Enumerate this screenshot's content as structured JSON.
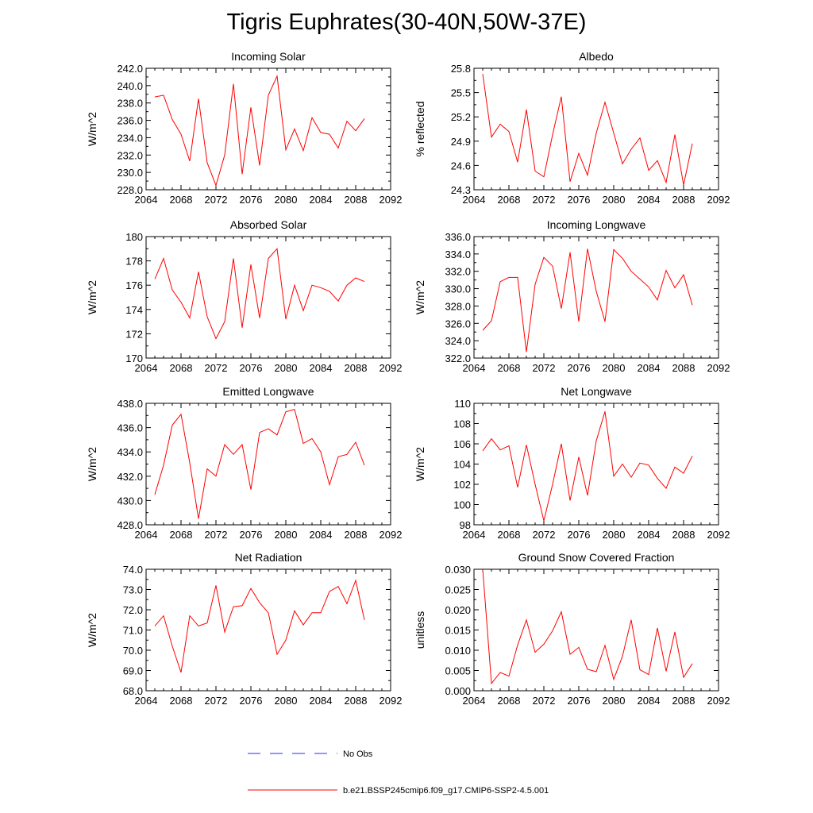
{
  "title": "Tigris Euphrates(30-40N,50W-37E)",
  "legend": {
    "entries": [
      {
        "label": "No Obs",
        "color": "#0000ff",
        "dashed": true
      },
      {
        "label": "b.e21.BSSP245cmip6.f09_g17.CMIP6-SSP2-4.5.001",
        "color": "#ff0000",
        "dashed": false
      }
    ]
  },
  "chart_data": [
    {
      "type": "line",
      "title": "Incoming Solar",
      "xlabel": "",
      "ylabel": "W/m^2",
      "xlim": [
        2064,
        2092
      ],
      "ylim": [
        228,
        242
      ],
      "yformat": 1,
      "xticks": [
        2064,
        2068,
        2072,
        2076,
        2080,
        2084,
        2088,
        2092
      ],
      "yticks": [
        228,
        230,
        232,
        234,
        236,
        238,
        240,
        242
      ],
      "series": [
        {
          "color": "#ff0000",
          "x": [
            2065,
            2066,
            2067,
            2068,
            2069,
            2070,
            2071,
            2072,
            2073,
            2074,
            2075,
            2076,
            2077,
            2078,
            2079,
            2080,
            2081,
            2082,
            2083,
            2084,
            2085,
            2086,
            2087,
            2088,
            2089
          ],
          "y": [
            238.7,
            238.9,
            236.1,
            234.4,
            231.3,
            238.5,
            231.1,
            228.5,
            232.0,
            240.2,
            229.8,
            237.5,
            230.8,
            238.9,
            241.1,
            232.6,
            235.0,
            232.5,
            236.3,
            234.6,
            234.4,
            232.8,
            235.9,
            234.8,
            236.2
          ]
        }
      ]
    },
    {
      "type": "line",
      "title": "Albedo",
      "xlabel": "",
      "ylabel": "% reflected",
      "xlim": [
        2064,
        2092
      ],
      "ylim": [
        24.3,
        25.8
      ],
      "yformat": 1,
      "xticks": [
        2064,
        2068,
        2072,
        2076,
        2080,
        2084,
        2088,
        2092
      ],
      "yticks": [
        24.3,
        24.6,
        24.9,
        25.2,
        25.5,
        25.8
      ],
      "series": [
        {
          "color": "#ff0000",
          "x": [
            2065,
            2066,
            2067,
            2068,
            2069,
            2070,
            2071,
            2072,
            2073,
            2074,
            2075,
            2076,
            2077,
            2078,
            2079,
            2080,
            2081,
            2082,
            2083,
            2084,
            2085,
            2086,
            2087,
            2088,
            2089
          ],
          "y": [
            25.73,
            24.95,
            25.11,
            25.02,
            24.64,
            25.29,
            24.53,
            24.46,
            24.98,
            25.45,
            24.4,
            24.75,
            24.48,
            25.0,
            25.38,
            25.0,
            24.62,
            24.8,
            24.94,
            24.54,
            24.66,
            24.39,
            24.98,
            24.36,
            24.87
          ]
        }
      ]
    },
    {
      "type": "line",
      "title": "Absorbed Solar",
      "xlabel": "",
      "ylabel": "W/m^2",
      "xlim": [
        2064,
        2092
      ],
      "ylim": [
        170,
        180
      ],
      "yformat": 0,
      "xticks": [
        2064,
        2068,
        2072,
        2076,
        2080,
        2084,
        2088,
        2092
      ],
      "yticks": [
        170,
        172,
        174,
        176,
        178,
        180
      ],
      "series": [
        {
          "color": "#ff0000",
          "x": [
            2065,
            2066,
            2067,
            2068,
            2069,
            2070,
            2071,
            2072,
            2073,
            2074,
            2075,
            2076,
            2077,
            2078,
            2079,
            2080,
            2081,
            2082,
            2083,
            2084,
            2085,
            2086,
            2087,
            2088,
            2089
          ],
          "y": [
            176.5,
            178.2,
            175.6,
            174.6,
            173.3,
            177.1,
            173.4,
            171.6,
            173.0,
            178.2,
            172.5,
            177.7,
            173.3,
            178.2,
            179.0,
            173.2,
            176.0,
            173.9,
            176.0,
            175.8,
            175.5,
            174.7,
            176.0,
            176.6,
            176.3
          ]
        }
      ]
    },
    {
      "type": "line",
      "title": "Incoming Longwave",
      "xlabel": "",
      "ylabel": "W/m^2",
      "xlim": [
        2064,
        2092
      ],
      "ylim": [
        322,
        336
      ],
      "yformat": 1,
      "xticks": [
        2064,
        2068,
        2072,
        2076,
        2080,
        2084,
        2088,
        2092
      ],
      "yticks": [
        322,
        324,
        326,
        328,
        330,
        332,
        334,
        336
      ],
      "series": [
        {
          "color": "#ff0000",
          "x": [
            2065,
            2066,
            2067,
            2068,
            2069,
            2070,
            2071,
            2072,
            2073,
            2074,
            2075,
            2076,
            2077,
            2078,
            2079,
            2080,
            2081,
            2082,
            2083,
            2084,
            2085,
            2086,
            2087,
            2088,
            2089
          ],
          "y": [
            325.2,
            326.3,
            330.8,
            331.3,
            331.3,
            322.7,
            330.5,
            333.6,
            332.6,
            327.7,
            334.2,
            326.2,
            334.6,
            329.7,
            326.2,
            334.5,
            333.5,
            332.0,
            331.1,
            330.2,
            328.7,
            332.1,
            330.1,
            331.6,
            328.1
          ]
        }
      ]
    },
    {
      "type": "line",
      "title": "Emitted Longwave",
      "xlabel": "",
      "ylabel": "W/m^2",
      "xlim": [
        2064,
        2092
      ],
      "ylim": [
        428,
        438
      ],
      "yformat": 1,
      "xticks": [
        2064,
        2068,
        2072,
        2076,
        2080,
        2084,
        2088,
        2092
      ],
      "yticks": [
        428,
        430,
        432,
        434,
        436,
        438
      ],
      "series": [
        {
          "color": "#ff0000",
          "x": [
            2065,
            2066,
            2067,
            2068,
            2069,
            2070,
            2071,
            2072,
            2073,
            2074,
            2075,
            2076,
            2077,
            2078,
            2079,
            2080,
            2081,
            2082,
            2083,
            2084,
            2085,
            2086,
            2087,
            2088,
            2089
          ],
          "y": [
            430.5,
            432.9,
            436.2,
            437.1,
            433.1,
            428.5,
            432.6,
            432.0,
            434.6,
            433.8,
            434.6,
            430.9,
            435.6,
            435.9,
            435.4,
            437.3,
            437.5,
            434.7,
            435.1,
            434.0,
            431.3,
            433.6,
            433.8,
            434.8,
            432.9
          ]
        }
      ]
    },
    {
      "type": "line",
      "title": "Net Longwave",
      "xlabel": "",
      "ylabel": "W/m^2",
      "xlim": [
        2064,
        2092
      ],
      "ylim": [
        98,
        110
      ],
      "yformat": 0,
      "xticks": [
        2064,
        2068,
        2072,
        2076,
        2080,
        2084,
        2088,
        2092
      ],
      "yticks": [
        98,
        100,
        102,
        104,
        106,
        108,
        110
      ],
      "series": [
        {
          "color": "#ff0000",
          "x": [
            2065,
            2066,
            2067,
            2068,
            2069,
            2070,
            2071,
            2072,
            2073,
            2074,
            2075,
            2076,
            2077,
            2078,
            2079,
            2080,
            2081,
            2082,
            2083,
            2084,
            2085,
            2086,
            2087,
            2088,
            2089
          ],
          "y": [
            105.3,
            106.5,
            105.4,
            105.8,
            101.7,
            105.9,
            102.0,
            98.4,
            102.0,
            106.0,
            100.4,
            104.7,
            100.9,
            106.3,
            109.2,
            102.8,
            104.0,
            102.7,
            104.1,
            103.9,
            102.6,
            101.6,
            103.7,
            103.1,
            104.8
          ]
        }
      ]
    },
    {
      "type": "line",
      "title": "Net Radiation",
      "xlabel": "",
      "ylabel": "W/m^2",
      "xlim": [
        2064,
        2092
      ],
      "ylim": [
        68,
        74
      ],
      "yformat": 1,
      "xticks": [
        2064,
        2068,
        2072,
        2076,
        2080,
        2084,
        2088,
        2092
      ],
      "yticks": [
        68,
        69,
        70,
        71,
        72,
        73,
        74
      ],
      "series": [
        {
          "color": "#ff0000",
          "x": [
            2065,
            2066,
            2067,
            2068,
            2069,
            2070,
            2071,
            2072,
            2073,
            2074,
            2075,
            2076,
            2077,
            2078,
            2079,
            2080,
            2081,
            2082,
            2083,
            2084,
            2085,
            2086,
            2087,
            2088,
            2089
          ],
          "y": [
            71.2,
            71.7,
            70.2,
            68.9,
            71.7,
            71.2,
            71.35,
            73.2,
            70.9,
            72.15,
            72.2,
            73.05,
            72.35,
            71.85,
            69.8,
            70.5,
            71.95,
            71.25,
            71.85,
            71.85,
            72.9,
            73.15,
            72.3,
            73.45,
            71.5
          ]
        }
      ]
    },
    {
      "type": "line",
      "title": "Ground Snow Covered Fraction",
      "xlabel": "",
      "ylabel": "unitless",
      "xlim": [
        2064,
        2092
      ],
      "ylim": [
        0,
        0.03
      ],
      "yformat": 3,
      "xticks": [
        2064,
        2068,
        2072,
        2076,
        2080,
        2084,
        2088,
        2092
      ],
      "yticks": [
        0,
        0.005,
        0.01,
        0.015,
        0.02,
        0.025,
        0.03
      ],
      "series": [
        {
          "color": "#ff0000",
          "x": [
            2065,
            2066,
            2067,
            2068,
            2069,
            2070,
            2071,
            2072,
            2073,
            2074,
            2075,
            2076,
            2077,
            2078,
            2079,
            2080,
            2081,
            2082,
            2083,
            2084,
            2085,
            2086,
            2087,
            2088,
            2089
          ],
          "y": [
            0.03,
            0.0018,
            0.0045,
            0.0036,
            0.0113,
            0.0175,
            0.0095,
            0.0115,
            0.0148,
            0.0195,
            0.009,
            0.0107,
            0.0053,
            0.0047,
            0.0112,
            0.0028,
            0.0085,
            0.0175,
            0.0052,
            0.004,
            0.0155,
            0.0048,
            0.0145,
            0.0033,
            0.0067
          ]
        }
      ]
    }
  ]
}
